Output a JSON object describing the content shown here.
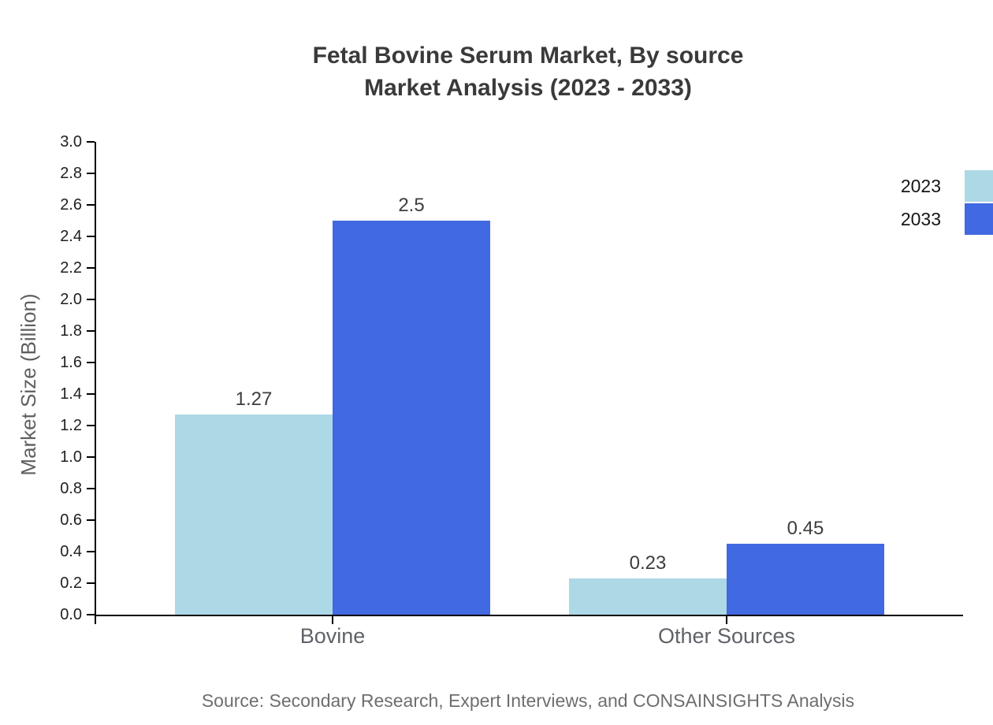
{
  "header": {
    "line1": "Fetal Bovine Serum Market, By source",
    "line2": "Market Analysis (2023 - 2033)"
  },
  "source_note": "Source: Secondary Research, Expert Interviews, and CONSAINSIGHTS Analysis",
  "chart_data": {
    "type": "bar",
    "title": "Fetal Bovine Serum Market, By source — Market Analysis (2023 - 2033)",
    "categories": [
      "Bovine",
      "Other Sources"
    ],
    "series": [
      {
        "name": "2023",
        "color": "#ADD8E6",
        "values": [
          1.27,
          0.23
        ]
      },
      {
        "name": "2033",
        "color": "#4169E1",
        "values": [
          2.5,
          0.45
        ]
      }
    ],
    "xlabel": "",
    "ylabel": "Market Size (Billion)",
    "ylim": [
      0.0,
      3.0
    ],
    "ytick_step": 0.2,
    "grid": false,
    "legend_position": "top-right",
    "bar_value_labels": [
      "1.27",
      "2.5",
      "0.23",
      "0.45"
    ]
  }
}
